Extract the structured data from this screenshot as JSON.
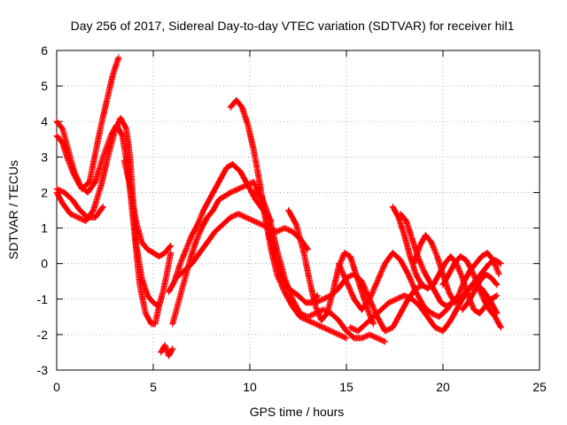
{
  "chart_data": {
    "type": "scatter",
    "title": "Day 256 of 2017, Sidereal Day-to-day VTEC variation (SDTVAR) for receiver hil1",
    "xlabel": "GPS time / hours",
    "ylabel": "SDTVAR / TECUs",
    "xlim": [
      0,
      25
    ],
    "ylim": [
      -3,
      6
    ],
    "xticks": [
      "0",
      "5",
      "10",
      "15",
      "20",
      "25"
    ],
    "yticks": [
      "-3",
      "-2",
      "-1",
      "0",
      "1",
      "2",
      "3",
      "4",
      "5",
      "6"
    ],
    "grid": true,
    "marker": "+",
    "color": "#ff0000",
    "series": [
      {
        "x": [
          0.0,
          0.3,
          0.6,
          0.9,
          1.2,
          1.6,
          2.0,
          2.4,
          2.8,
          3.1,
          3.4,
          3.7,
          4.0,
          4.3,
          4.6,
          4.9,
          5.1,
          5.3
        ],
        "y": [
          3.6,
          3.4,
          2.9,
          2.5,
          2.2,
          2.0,
          2.3,
          3.0,
          3.6,
          3.9,
          3.6,
          2.6,
          1.0,
          -0.6,
          -1.4,
          -1.7,
          -1.7,
          -1.2
        ]
      },
      {
        "x": [
          0.0,
          0.3,
          0.7,
          1.1,
          1.5,
          1.9,
          2.3,
          2.7,
          3.0,
          3.3,
          3.6,
          3.8,
          4.1,
          4.4,
          4.7,
          5.0,
          5.3,
          5.5,
          5.7,
          5.9
        ],
        "y": [
          2.0,
          1.7,
          1.4,
          1.3,
          1.2,
          1.5,
          2.2,
          3.1,
          3.7,
          4.1,
          3.8,
          3.0,
          0.6,
          -0.4,
          -0.9,
          -1.1,
          -1.2,
          -0.8,
          -0.3,
          0.3
        ]
      },
      {
        "x": [
          0.0,
          0.3,
          0.6,
          0.9,
          1.3,
          1.7,
          2.0,
          2.3,
          2.6,
          2.9,
          3.2
        ],
        "y": [
          4.0,
          3.8,
          3.2,
          2.6,
          2.1,
          2.3,
          3.1,
          3.9,
          4.6,
          5.3,
          5.8
        ]
      },
      {
        "x": [
          0.0,
          0.4,
          0.8,
          1.2,
          1.6,
          2.0,
          2.4
        ],
        "y": [
          2.1,
          2.0,
          1.8,
          1.5,
          1.3,
          1.3,
          1.6
        ]
      },
      {
        "x": [
          3.5,
          3.8,
          4.1,
          4.4,
          4.7,
          5.0,
          5.3,
          5.6,
          5.9
        ],
        "y": [
          2.9,
          2.2,
          1.2,
          0.6,
          0.4,
          0.3,
          0.2,
          0.3,
          0.5
        ]
      },
      {
        "x": [
          5.4,
          5.6,
          5.8,
          6.0
        ],
        "y": [
          -2.5,
          -2.3,
          -2.6,
          -2.4
        ]
      },
      {
        "x": [
          6.0,
          6.3,
          6.6,
          6.9,
          7.2,
          7.5,
          7.8,
          8.1,
          8.4,
          8.7,
          9.0,
          9.4,
          9.8,
          10.2,
          10.6,
          11.0,
          11.5,
          12.0,
          12.5,
          12.9,
          13.2,
          13.5
        ],
        "y": [
          -1.7,
          -1.1,
          -0.5,
          0.1,
          0.6,
          1.0,
          1.3,
          1.5,
          1.8,
          1.9,
          2.0,
          2.1,
          2.2,
          2.3,
          1.8,
          0.8,
          -0.2,
          -0.7,
          -0.9,
          -1.1,
          -1.1,
          -0.9
        ]
      },
      {
        "x": [
          5.8,
          6.1,
          6.4,
          6.7,
          7.0,
          7.3,
          7.6,
          7.9,
          8.2,
          8.5,
          8.8,
          9.1,
          9.5,
          9.9,
          10.3,
          10.7,
          11.1
        ],
        "y": [
          -0.8,
          -0.5,
          0.0,
          0.4,
          0.8,
          1.1,
          1.5,
          1.8,
          2.1,
          2.4,
          2.7,
          2.8,
          2.6,
          2.2,
          1.8,
          1.5,
          1.2
        ]
      },
      {
        "x": [
          6.2,
          6.6,
          7.0,
          7.4,
          7.8,
          8.2,
          8.6,
          9.0,
          9.4,
          9.8,
          10.2,
          10.6,
          11.0,
          11.4,
          11.8,
          12.2,
          12.6,
          13.0
        ],
        "y": [
          -0.4,
          -0.2,
          0.0,
          0.3,
          0.6,
          0.9,
          1.1,
          1.3,
          1.4,
          1.3,
          1.2,
          1.1,
          1.0,
          0.9,
          1.0,
          0.9,
          0.7,
          0.4
        ]
      },
      {
        "x": [
          9.0,
          9.3,
          9.6,
          9.9,
          10.2,
          10.5,
          10.8,
          11.1,
          11.4,
          11.8,
          12.2,
          12.6,
          13.0,
          13.4,
          13.8,
          14.2,
          14.6,
          15.0
        ],
        "y": [
          4.4,
          4.6,
          4.4,
          3.9,
          3.2,
          2.3,
          1.3,
          0.4,
          -0.3,
          -0.8,
          -1.2,
          -1.5,
          -1.6,
          -1.7,
          -1.8,
          -1.9,
          -2.0,
          -2.1
        ]
      },
      {
        "x": [
          10.2,
          10.6,
          11.0,
          11.4,
          11.8,
          12.2,
          12.6,
          13.0,
          13.4,
          13.8,
          14.2,
          14.6,
          15.0,
          15.4,
          15.8,
          16.2,
          16.6,
          17.0
        ],
        "y": [
          2.0,
          1.9,
          1.3,
          0.4,
          -0.4,
          -1.0,
          -1.4,
          -1.5,
          -1.4,
          -1.3,
          -1.4,
          -1.6,
          -1.9,
          -2.1,
          -2.1,
          -2.0,
          -2.1,
          -2.2
        ]
      },
      {
        "x": [
          12.0,
          12.4,
          12.8,
          13.1,
          13.4,
          13.7,
          14.0,
          14.3,
          14.6,
          14.9,
          15.2,
          15.5,
          15.8,
          16.1,
          16.4
        ],
        "y": [
          1.5,
          1.1,
          0.3,
          -0.5,
          -1.2,
          -1.6,
          -1.4,
          -0.8,
          -0.1,
          0.3,
          0.2,
          -0.3,
          -0.8,
          -1.3,
          -1.7
        ]
      },
      {
        "x": [
          13.4,
          13.8,
          14.2,
          14.6,
          15.0,
          15.4,
          15.8,
          16.2,
          16.6,
          17.0,
          17.4,
          17.8,
          18.2,
          18.6,
          19.0
        ],
        "y": [
          -1.1,
          -1.0,
          -0.9,
          -0.7,
          -0.4,
          -0.3,
          -0.5,
          -1.0,
          -1.5,
          -1.9,
          -1.8,
          -1.4,
          -1.0,
          -0.7,
          -0.6
        ]
      },
      {
        "x": [
          14.6,
          15.0,
          15.4,
          15.8,
          16.2,
          16.6,
          17.0,
          17.4,
          17.8,
          18.2,
          18.6,
          19.0,
          19.4,
          19.8,
          20.2,
          20.6
        ],
        "y": [
          0.0,
          -0.5,
          -1.0,
          -1.3,
          -1.0,
          -0.5,
          0.0,
          0.3,
          0.1,
          -0.3,
          -0.8,
          -1.2,
          -1.4,
          -1.5,
          -1.3,
          -1.0
        ]
      },
      {
        "x": [
          15.2,
          15.6,
          16.0,
          16.4,
          16.8,
          17.2,
          17.6,
          18.0,
          18.4,
          18.8,
          19.2,
          19.6,
          20.0,
          20.4,
          20.8,
          21.2,
          21.6,
          22.0,
          22.4,
          22.8
        ],
        "y": [
          -1.8,
          -1.9,
          -1.7,
          -1.5,
          -1.3,
          -1.1,
          -1.0,
          -0.9,
          -1.0,
          -1.2,
          -1.5,
          -1.8,
          -1.9,
          -1.6,
          -1.2,
          -0.8,
          -0.6,
          -0.7,
          -1.0,
          -1.4
        ]
      },
      {
        "x": [
          17.4,
          17.7,
          18.0,
          18.3,
          18.6,
          18.9,
          19.2,
          19.5,
          19.8,
          20.1,
          20.4,
          20.7,
          21.0,
          21.3,
          21.6,
          21.9,
          22.2,
          22.5,
          22.8
        ],
        "y": [
          1.6,
          1.3,
          0.8,
          0.2,
          -0.3,
          -0.6,
          -0.7,
          -0.6,
          -0.3,
          0.0,
          0.2,
          0.0,
          -0.4,
          -0.9,
          -1.3,
          -1.4,
          -1.2,
          -1.0,
          -0.9
        ]
      },
      {
        "x": [
          17.8,
          18.1,
          18.4,
          18.7,
          19.0,
          19.3,
          19.6,
          19.9,
          20.2,
          20.5,
          20.8,
          21.1,
          21.4,
          21.7,
          22.0,
          22.3,
          22.6,
          22.9
        ],
        "y": [
          1.4,
          1.2,
          0.7,
          0.2,
          -0.2,
          -0.5,
          -0.8,
          -1.1,
          -1.2,
          -1.1,
          -0.9,
          -0.5,
          -0.2,
          0.0,
          0.2,
          0.3,
          0.1,
          -0.3
        ]
      },
      {
        "x": [
          18.5,
          18.8,
          19.1,
          19.4,
          19.7,
          20.0,
          20.3,
          20.6,
          20.9,
          21.2,
          21.5,
          21.8,
          22.1,
          22.4,
          22.7,
          23.0
        ],
        "y": [
          0.0,
          0.5,
          0.8,
          0.6,
          0.2,
          -0.3,
          -0.8,
          -1.1,
          -1.0,
          -0.8,
          -0.6,
          -0.4,
          -0.2,
          0.0,
          0.1,
          0.0
        ]
      },
      {
        "x": [
          20.0,
          20.3,
          20.6,
          20.9,
          21.2,
          21.5,
          21.8,
          22.1,
          22.4,
          22.7,
          23.0
        ],
        "y": [
          -0.6,
          -0.3,
          0.0,
          0.2,
          0.1,
          -0.2,
          -0.6,
          -1.0,
          -1.3,
          -1.5,
          -1.8
        ]
      },
      {
        "x": [
          21.0,
          21.3,
          21.6,
          21.9,
          22.2,
          22.5,
          22.8
        ],
        "y": [
          -1.3,
          -1.1,
          -0.8,
          -0.5,
          -0.3,
          -0.4,
          -0.6
        ]
      }
    ]
  }
}
